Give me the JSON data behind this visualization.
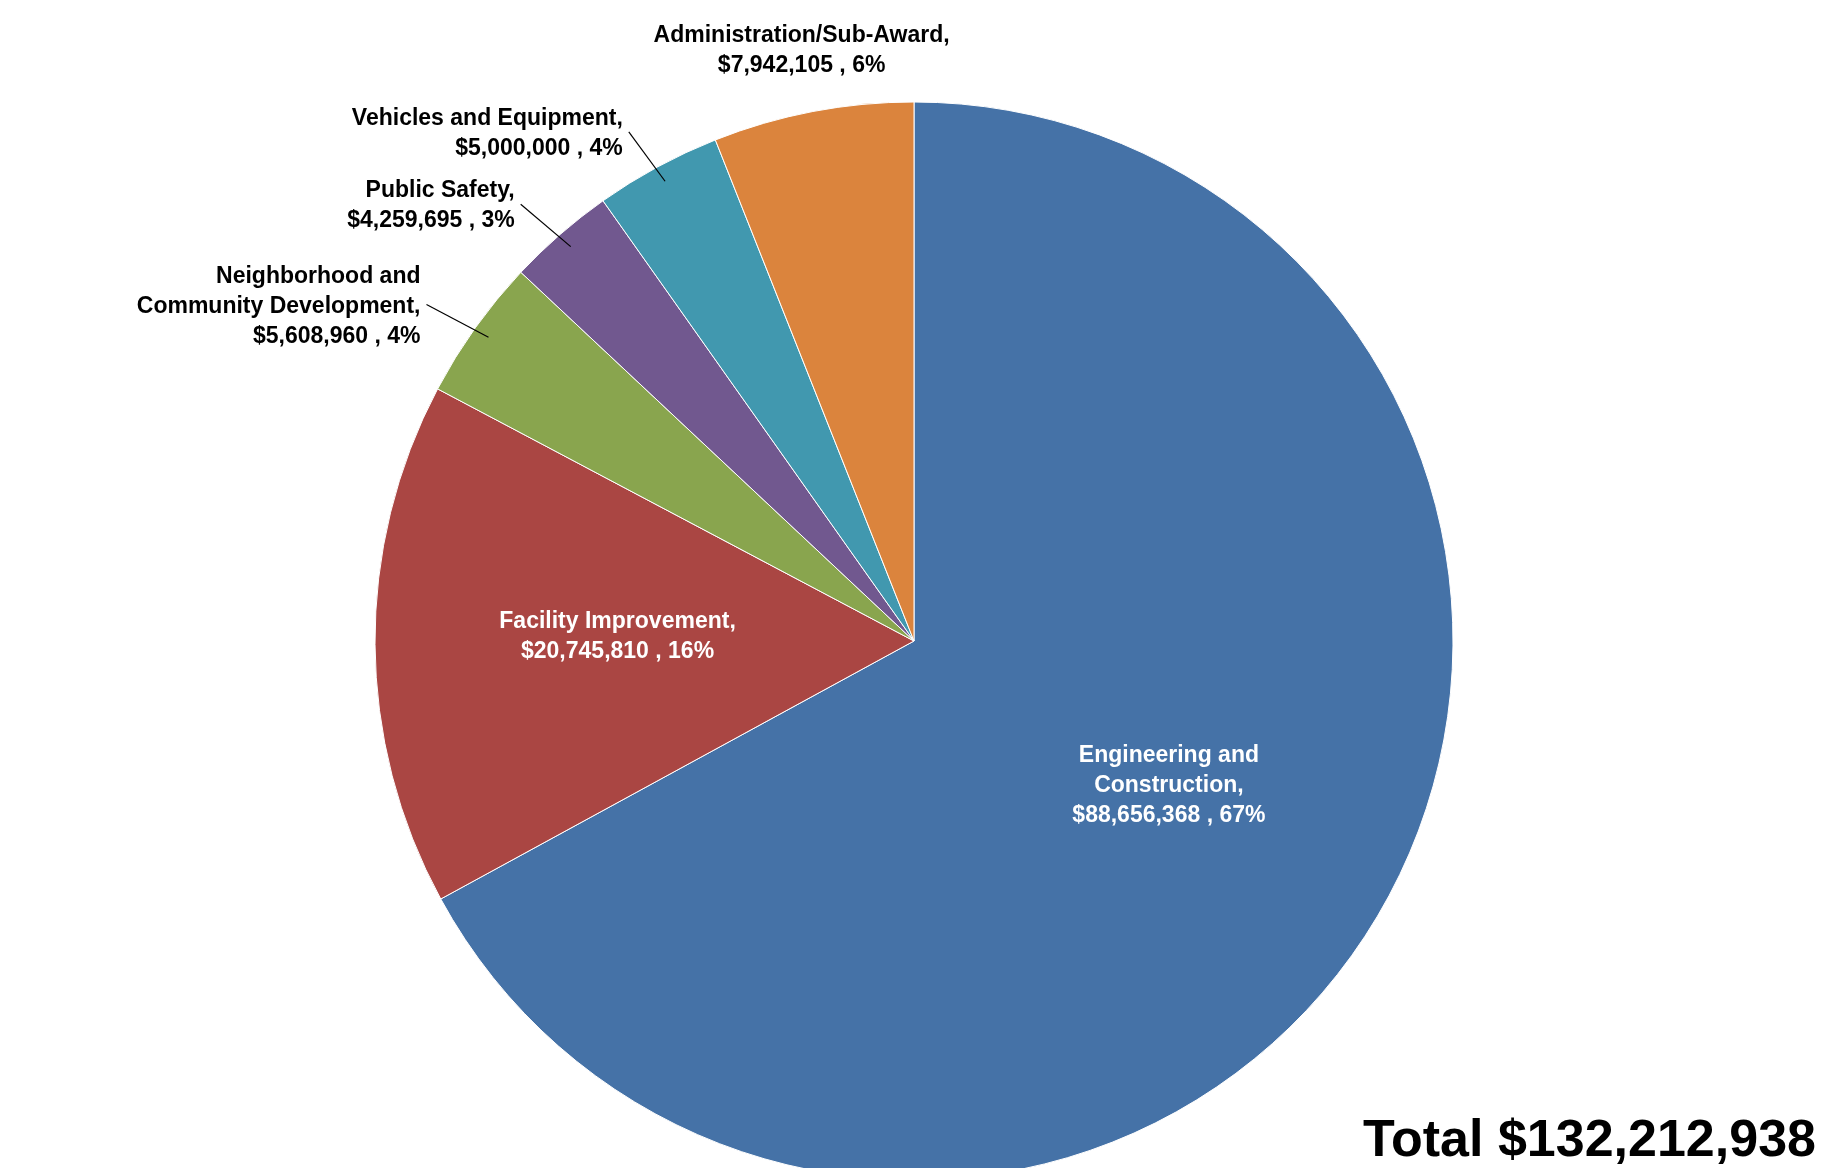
{
  "chart_data": {
    "type": "pie",
    "categories": [
      "Engineering and Construction",
      "Facility Improvement",
      "Neighborhood and Community Development",
      "Public Safety",
      "Vehicles and Equipment",
      "Administration/Sub-Award"
    ],
    "values": [
      88656368,
      20745810,
      5608960,
      4259695,
      5000000,
      7942105
    ],
    "value_labels": [
      ", $88,656,368 , 67%",
      ", $20,745,810 , 16%",
      ", $5,608,960 , 4%",
      ", $4,259,695 , 3%",
      ", $5,000,000 , 4%",
      ", $7,942,105 , 6%"
    ],
    "colors": [
      "#4572a7",
      "#aa4643",
      "#89a54e",
      "#71588f",
      "#4198af",
      "#db843d"
    ],
    "annotations": [
      "Total $132,212,938"
    ]
  }
}
